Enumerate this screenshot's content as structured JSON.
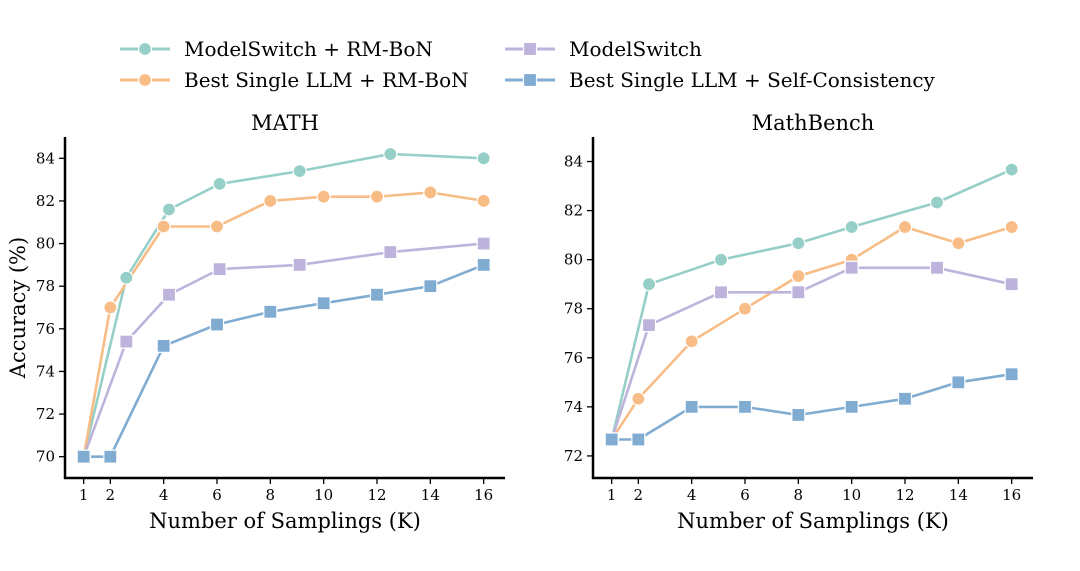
{
  "chart_data": [
    {
      "type": "line",
      "title": "MATH",
      "xlabel": "Number of Samplings (K)",
      "ylabel": "Accuracy (%)",
      "xlim": [
        0.3,
        16.8
      ],
      "ylim": [
        69,
        85
      ],
      "xticks": [
        1,
        2,
        4,
        6,
        8,
        10,
        12,
        14,
        16
      ],
      "yticks": [
        70,
        72,
        74,
        76,
        78,
        80,
        82,
        84
      ],
      "grid": false,
      "series": [
        {
          "name": "ModelSwitch + RM-BoN",
          "color": "#96cfc7",
          "marker": "circle",
          "x": [
            1,
            2.6,
            4.2,
            6.1,
            9.1,
            12.5,
            16
          ],
          "y": [
            70.0,
            78.4,
            81.6,
            82.8,
            83.4,
            84.2,
            84.0
          ]
        },
        {
          "name": "Best Single LLM + RM-BoN",
          "color": "#f8bd86",
          "marker": "circle",
          "x": [
            1,
            2,
            4,
            6,
            8,
            10,
            12,
            14,
            16
          ],
          "y": [
            70.0,
            77.0,
            80.8,
            80.8,
            82.0,
            82.2,
            82.2,
            82.4,
            82.0
          ]
        },
        {
          "name": "ModelSwitch",
          "color": "#bdb3dc",
          "marker": "square",
          "x": [
            1,
            2.6,
            4.2,
            6.1,
            9.1,
            12.5,
            16
          ],
          "y": [
            70.0,
            75.4,
            77.6,
            78.8,
            79.0,
            79.6,
            80.0
          ]
        },
        {
          "name": "Best Single LLM + Self-Consistency",
          "color": "#80acd2",
          "marker": "square",
          "x": [
            1,
            2,
            4,
            6,
            8,
            10,
            12,
            14,
            16
          ],
          "y": [
            70.0,
            70.0,
            75.2,
            76.2,
            76.8,
            77.2,
            77.6,
            78.0,
            79.0
          ]
        }
      ]
    },
    {
      "type": "line",
      "title": "MathBench",
      "xlabel": "Number of Samplings (K)",
      "ylabel": "",
      "xlim": [
        0.3,
        16.8
      ],
      "ylim": [
        71.1,
        85.0
      ],
      "xticks": [
        1,
        2,
        4,
        6,
        8,
        10,
        12,
        14,
        16
      ],
      "yticks": [
        72,
        74,
        76,
        78,
        80,
        82,
        84
      ],
      "grid": false,
      "series": [
        {
          "name": "ModelSwitch + RM-BoN",
          "color": "#96cfc7",
          "marker": "circle",
          "x": [
            1,
            2.4,
            5.1,
            8,
            10,
            13.2,
            16
          ],
          "y": [
            72.67,
            79.0,
            80.0,
            80.67,
            81.33,
            82.33,
            83.67
          ]
        },
        {
          "name": "Best Single LLM + RM-BoN",
          "color": "#f8bd86",
          "marker": "circle",
          "x": [
            1,
            2,
            4,
            6,
            8,
            10,
            12,
            14,
            16
          ],
          "y": [
            72.67,
            74.33,
            76.67,
            78.0,
            79.33,
            80.0,
            81.33,
            80.67,
            81.33
          ]
        },
        {
          "name": "ModelSwitch",
          "color": "#bdb3dc",
          "marker": "square",
          "x": [
            1,
            2.4,
            5.1,
            8,
            10,
            13.2,
            16
          ],
          "y": [
            72.67,
            77.33,
            78.67,
            78.67,
            79.67,
            79.67,
            79.0
          ]
        },
        {
          "name": "Best Single LLM + Self-Consistency",
          "color": "#80acd2",
          "marker": "square",
          "x": [
            1,
            2,
            4,
            6,
            8,
            10,
            12,
            14,
            16
          ],
          "y": [
            72.67,
            72.67,
            74.0,
            74.0,
            73.67,
            74.0,
            74.33,
            75.0,
            75.33
          ]
        }
      ]
    }
  ],
  "legend": {
    "placement": "top",
    "entries": [
      {
        "label": "ModelSwitch + RM-BoN",
        "color": "#96cfc7",
        "marker": "circle"
      },
      {
        "label": "Best Single LLM + RM-BoN",
        "color": "#f8bd86",
        "marker": "circle"
      },
      {
        "label": "ModelSwitch",
        "color": "#bdb3dc",
        "marker": "square"
      },
      {
        "label": "Best Single LLM + Self-Consistency",
        "color": "#80acd2",
        "marker": "square"
      }
    ]
  }
}
